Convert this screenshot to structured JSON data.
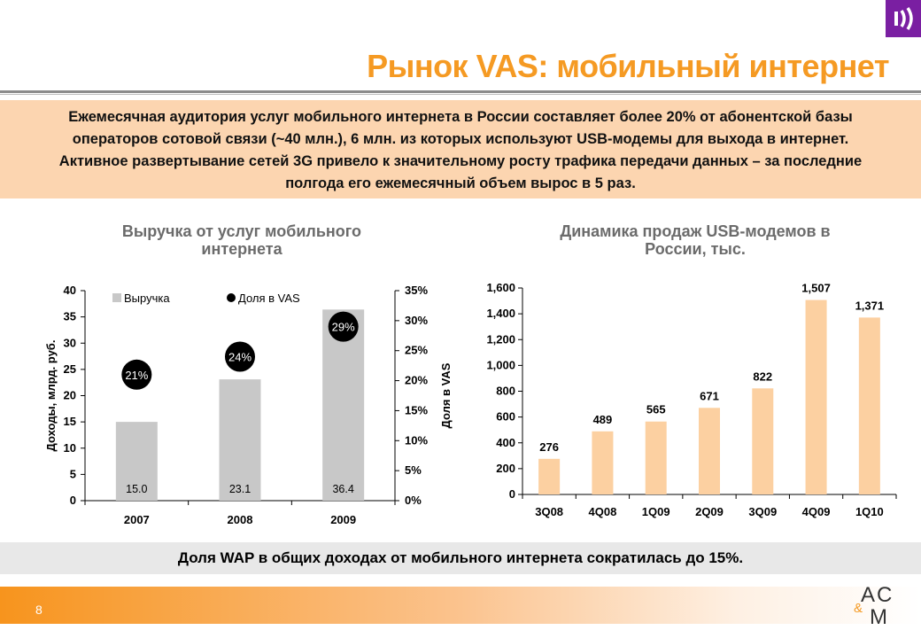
{
  "slide": {
    "title": "Рынок VAS: мобильный интернет",
    "summary": [
      "Ежемесячная аудитория услуг мобильного интернета в России составляет более 20% от абонентской базы",
      "операторов сотовой связи (~40 млн.), 6 млн. из которых используют USB-модемы для выхода в интернет.",
      "Активное развертывание сетей 3G привело к значительному росту трафика передачи данных – за последние",
      "полгода его ежемесячный объем вырос в 5 раз."
    ],
    "footer_note": "Доля WAP в общих доходах от мобильного интернета сократилась до 15%.",
    "page_number": "8",
    "brand": {
      "top": "A",
      "left": "C",
      "amp": "&",
      "bottom": "M"
    },
    "colors": {
      "title": "#f59a23",
      "summary_bg": "#fcd5b0",
      "left_bars": "#c8c8c8",
      "right_bars": "#fcd0a1",
      "dots": "#000000",
      "logo_tab": "#7a1fa2",
      "footer_band": "#e8e8e8"
    },
    "icons": {
      "logo_tab": "sound-waves-icon"
    }
  },
  "chart_data": [
    {
      "type": "bar",
      "title": "Выручка от услуг мобильного интернета",
      "title_lines": [
        "Выручка от услуг мобильного",
        "интернета"
      ],
      "categories": [
        "2007",
        "2008",
        "2009"
      ],
      "series": [
        {
          "name": "Выручка",
          "values": [
            15.0,
            23.1,
            36.4
          ],
          "value_labels": [
            "15.0",
            "23.1",
            "36.4"
          ],
          "axis": "left"
        },
        {
          "name": "Доля в VAS",
          "values": [
            21,
            24,
            29
          ],
          "value_labels": [
            "21%",
            "24%",
            "29%"
          ],
          "axis": "right",
          "style": "dot"
        }
      ],
      "ylabel": "Доходы, млрд. руб.",
      "y2label": "Доля в VAS",
      "ylim": [
        0,
        40
      ],
      "y2lim": [
        0,
        35
      ],
      "yticks": [
        "0",
        "5",
        "10",
        "15",
        "20",
        "25",
        "30",
        "35",
        "40"
      ],
      "y2ticks": [
        "0%",
        "5%",
        "10%",
        "15%",
        "20%",
        "25%",
        "30%",
        "35%"
      ],
      "legend": "top-left",
      "grid": false
    },
    {
      "type": "bar",
      "title": "Динамика продаж USB-модемов в России, тыс.",
      "title_lines": [
        "Динамика продаж USB-модемов в",
        "России, тыс."
      ],
      "categories": [
        "3Q08",
        "4Q08",
        "1Q09",
        "2Q09",
        "3Q09",
        "4Q09",
        "1Q10"
      ],
      "values": [
        276,
        489,
        565,
        671,
        822,
        1507,
        1371
      ],
      "value_labels": [
        "276",
        "489",
        "565",
        "671",
        "822",
        "1,507",
        "1,371"
      ],
      "ylim": [
        0,
        1600
      ],
      "yticks": [
        "0",
        "200",
        "400",
        "600",
        "800",
        "1,000",
        "1,200",
        "1,400",
        "1,600"
      ],
      "grid": false
    }
  ]
}
